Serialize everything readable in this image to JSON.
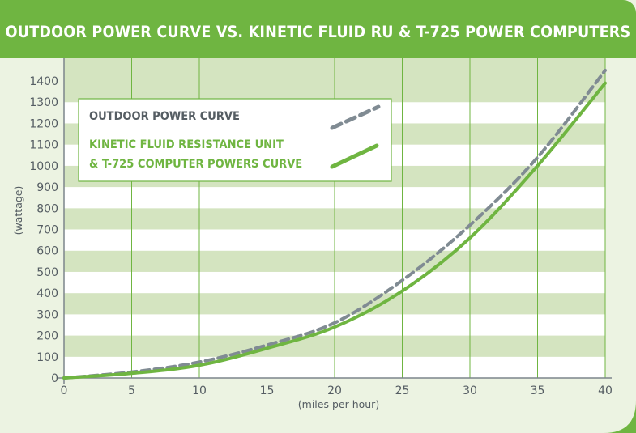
{
  "title": "OUTDOOR POWER CURVE VS. KINETIC FLUID RU & T-725 POWER COMPUTERS",
  "colors": {
    "header": "#6fb541",
    "background": "#ecf3e2",
    "stripe_dark": "#d4e4c0",
    "stripe_light": "#ffffff",
    "outdoor_curve": "#808b93",
    "kinetic_curve": "#6fb541",
    "text": "#555d63"
  },
  "chart_data": {
    "type": "line",
    "title": "OUTDOOR POWER CURVE VS. KINETIC FLUID RU & T-725 POWER COMPUTERS",
    "xlabel": "(miles per hour)",
    "ylabel": "(wattage)",
    "xlim": [
      0,
      40
    ],
    "ylim": [
      0,
      1400
    ],
    "x_ticks": [
      0,
      5,
      10,
      15,
      20,
      25,
      30,
      35,
      40
    ],
    "y_ticks": [
      0,
      100,
      200,
      300,
      400,
      500,
      600,
      700,
      800,
      900,
      1000,
      1100,
      1200,
      1300,
      1400
    ],
    "grid": true,
    "legend_position": "top-left",
    "series": [
      {
        "name": "OUTDOOR POWER CURVE",
        "style": "dashed",
        "color": "#808b93",
        "x": [
          0,
          5,
          10,
          15,
          20,
          25,
          30,
          35,
          40
        ],
        "y": [
          0,
          28,
          75,
          155,
          260,
          460,
          720,
          1040,
          1450
        ]
      },
      {
        "name": "KINETIC FLUID RESISTANCE UNIT & T-725 COMPUTER POWERS CURVE",
        "legend_lines": [
          "KINETIC FLUID RESISTANCE UNIT",
          "& T-725 COMPUTER POWERS CURVE"
        ],
        "style": "solid",
        "color": "#6fb541",
        "x": [
          0,
          5,
          10,
          15,
          20,
          25,
          30,
          35,
          40
        ],
        "y": [
          0,
          22,
          60,
          140,
          240,
          410,
          660,
          1000,
          1390
        ]
      }
    ]
  }
}
